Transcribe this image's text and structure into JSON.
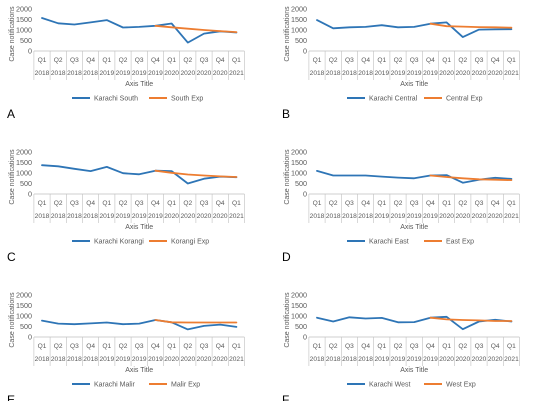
{
  "panel_letters": [
    "A",
    "B",
    "C",
    "D",
    "E",
    "F"
  ],
  "colors": {
    "observed": "#2e75b6",
    "expected": "#ed7d31",
    "axis": "#bfbfbf",
    "text": "#595959"
  },
  "chart_data": [
    {
      "type": "line",
      "quarters": [
        "Q1",
        "Q2",
        "Q3",
        "Q4",
        "Q1",
        "Q2",
        "Q3",
        "Q4",
        "Q1",
        "Q2",
        "Q3",
        "Q4",
        "Q1"
      ],
      "years": [
        "2018",
        "2018",
        "2018",
        "2018",
        "2019",
        "2019",
        "2019",
        "2019",
        "2020",
        "2020",
        "2020",
        "2020",
        "2021"
      ],
      "ylabel": "Case notifications",
      "xlabel": "Axis Title",
      "yticks": [
        0,
        500,
        1000,
        1500,
        2000
      ],
      "ylim": [
        0,
        2000
      ],
      "series": [
        {
          "name": "Karachi South",
          "values": [
            1570,
            1320,
            1260,
            1360,
            1470,
            1120,
            1150,
            1200,
            1310,
            400,
            830,
            940,
            880
          ]
        },
        {
          "name": "South Exp",
          "values": [
            null,
            null,
            null,
            null,
            null,
            null,
            null,
            1200,
            1130,
            1060,
            1000,
            950,
            900
          ]
        }
      ]
    },
    {
      "type": "line",
      "quarters": [
        "Q1",
        "Q2",
        "Q3",
        "Q4",
        "Q1",
        "Q2",
        "Q3",
        "Q4",
        "Q1",
        "Q2",
        "Q3",
        "Q4",
        "Q1"
      ],
      "years": [
        "2018",
        "2018",
        "2018",
        "2018",
        "2019",
        "2019",
        "2019",
        "2019",
        "2020",
        "2020",
        "2020",
        "2020",
        "2021"
      ],
      "ylabel": "Case notifications",
      "xlabel": "Axis Title",
      "yticks": [
        0,
        500,
        1000,
        1500,
        2000
      ],
      "ylim": [
        0,
        2000
      ],
      "series": [
        {
          "name": "Karachi Central",
          "values": [
            1470,
            1080,
            1130,
            1150,
            1230,
            1130,
            1150,
            1300,
            1360,
            660,
            1020,
            1030,
            1040
          ]
        },
        {
          "name": "Central Exp",
          "values": [
            null,
            null,
            null,
            null,
            null,
            null,
            null,
            1300,
            1180,
            1160,
            1140,
            1130,
            1110
          ]
        }
      ]
    },
    {
      "type": "line",
      "quarters": [
        "Q1",
        "Q2",
        "Q3",
        "Q4",
        "Q1",
        "Q2",
        "Q3",
        "Q4",
        "Q1",
        "Q2",
        "Q3",
        "Q4",
        "Q1"
      ],
      "years": [
        "2018",
        "2018",
        "2018",
        "2018",
        "2019",
        "2019",
        "2019",
        "2019",
        "2020",
        "2020",
        "2020",
        "2020",
        "2021"
      ],
      "ylabel": "Case notifications",
      "xlabel": "Axis Title",
      "yticks": [
        0,
        500,
        1000,
        1500,
        2000
      ],
      "ylim": [
        0,
        2000
      ],
      "series": [
        {
          "name": "Karachi Korangi",
          "values": [
            1370,
            1320,
            1200,
            1090,
            1290,
            990,
            940,
            1110,
            1090,
            500,
            730,
            830,
            800
          ]
        },
        {
          "name": "Korangi Exp",
          "values": [
            null,
            null,
            null,
            null,
            null,
            null,
            null,
            1110,
            1010,
            930,
            880,
            840,
            810
          ]
        }
      ]
    },
    {
      "type": "line",
      "quarters": [
        "Q1",
        "Q2",
        "Q3",
        "Q4",
        "Q1",
        "Q2",
        "Q3",
        "Q4",
        "Q1",
        "Q2",
        "Q3",
        "Q4",
        "Q1"
      ],
      "years": [
        "2018",
        "2018",
        "2018",
        "2018",
        "2019",
        "2019",
        "2019",
        "2019",
        "2020",
        "2020",
        "2020",
        "2020",
        "2021"
      ],
      "ylabel": "Case notifications",
      "xlabel": "Axis Title",
      "yticks": [
        0,
        500,
        1000,
        1500,
        2000
      ],
      "ylim": [
        0,
        2000
      ],
      "series": [
        {
          "name": "Karachi East",
          "values": [
            1100,
            880,
            880,
            880,
            830,
            780,
            750,
            880,
            900,
            540,
            680,
            770,
            720
          ]
        },
        {
          "name": "East Exp",
          "values": [
            null,
            null,
            null,
            null,
            null,
            null,
            null,
            880,
            810,
            750,
            700,
            680,
            660
          ]
        }
      ]
    },
    {
      "type": "line",
      "quarters": [
        "Q1",
        "Q2",
        "Q3",
        "Q4",
        "Q1",
        "Q2",
        "Q3",
        "Q4",
        "Q1",
        "Q2",
        "Q3",
        "Q4",
        "Q1"
      ],
      "years": [
        "2018",
        "2018",
        "2018",
        "2018",
        "2019",
        "2019",
        "2019",
        "2019",
        "2020",
        "2020",
        "2020",
        "2020",
        "2021"
      ],
      "ylabel": "Case notifications",
      "xlabel": "Axis Title",
      "yticks": [
        0,
        500,
        1000,
        1500,
        2000
      ],
      "ylim": [
        0,
        2000
      ],
      "series": [
        {
          "name": "Karachi Malir",
          "values": [
            780,
            640,
            610,
            650,
            690,
            610,
            640,
            810,
            700,
            360,
            530,
            590,
            480
          ]
        },
        {
          "name": "Malir Exp",
          "values": [
            null,
            null,
            null,
            null,
            null,
            null,
            null,
            810,
            700,
            690,
            690,
            690,
            690
          ]
        }
      ]
    },
    {
      "type": "line",
      "quarters": [
        "Q1",
        "Q2",
        "Q3",
        "Q4",
        "Q1",
        "Q2",
        "Q3",
        "Q4",
        "Q1",
        "Q2",
        "Q3",
        "Q4",
        "Q1"
      ],
      "years": [
        "2018",
        "2018",
        "2018",
        "2018",
        "2019",
        "2019",
        "2019",
        "2019",
        "2020",
        "2020",
        "2020",
        "2020",
        "2021"
      ],
      "ylabel": "Case notifications",
      "xlabel": "Axis Title",
      "yticks": [
        0,
        500,
        1000,
        1500,
        2000
      ],
      "ylim": [
        0,
        2000
      ],
      "series": [
        {
          "name": "Karachi West",
          "values": [
            920,
            740,
            940,
            880,
            910,
            700,
            710,
            920,
            960,
            370,
            740,
            820,
            740
          ]
        },
        {
          "name": "West Exp",
          "values": [
            null,
            null,
            null,
            null,
            null,
            null,
            null,
            920,
            840,
            810,
            790,
            760,
            760
          ]
        }
      ]
    }
  ]
}
